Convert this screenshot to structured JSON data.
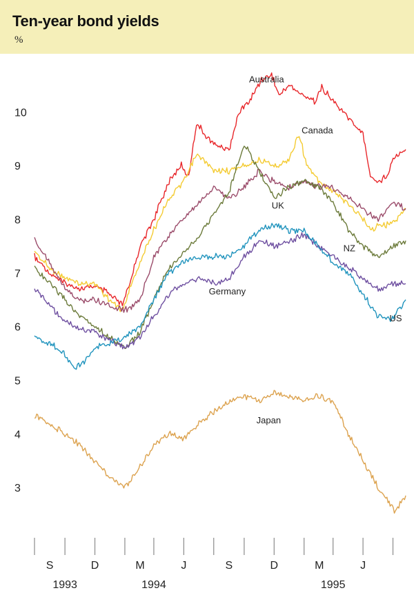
{
  "header": {
    "title": "Ten-year bond yields",
    "unit": "%"
  },
  "chart_data": {
    "type": "line",
    "title": "Ten-year bond yields",
    "ylabel": "%",
    "ylim": [
      2.0,
      10.8
    ],
    "y_ticks": [
      3,
      4,
      5,
      6,
      7,
      8,
      9,
      10
    ],
    "x_range": [
      "1993-07-15",
      "1995-08-10"
    ],
    "x_tick_dates": [
      "1993-07-15",
      "1993-09-15",
      "1993-11-15",
      "1994-01-15",
      "1994-03-15",
      "1994-05-15",
      "1994-07-15",
      "1994-09-15",
      "1994-11-15",
      "1995-01-15",
      "1995-03-15",
      "1995-05-15",
      "1995-07-15"
    ],
    "month_labels": [
      {
        "label": "S",
        "date": "1993-08-15"
      },
      {
        "label": "D",
        "date": "1993-11-15"
      },
      {
        "label": "M",
        "date": "1994-02-15"
      },
      {
        "label": "J",
        "date": "1994-05-15"
      },
      {
        "label": "S",
        "date": "1994-08-15"
      },
      {
        "label": "D",
        "date": "1994-11-15"
      },
      {
        "label": "M",
        "date": "1995-02-15"
      },
      {
        "label": "J",
        "date": "1995-05-15"
      }
    ],
    "year_labels": [
      {
        "label": "1993",
        "date": "1993-09-15"
      },
      {
        "label": "1994",
        "date": "1994-03-15"
      },
      {
        "label": "1995",
        "date": "1995-03-15"
      }
    ],
    "grid": false,
    "series": [
      {
        "name": "Australia",
        "color": "#e8262a",
        "label_at": "1994-09-25",
        "label_y": 10.55,
        "points": [
          [
            "1993-07-15",
            7.3
          ],
          [
            "1993-08-15",
            7.0
          ],
          [
            "1993-09-15",
            6.8
          ],
          [
            "1993-10-15",
            6.7
          ],
          [
            "1993-11-15",
            6.75
          ],
          [
            "1993-12-15",
            6.6
          ],
          [
            "1994-01-10",
            6.4
          ],
          [
            "1994-01-25",
            6.8
          ],
          [
            "1994-02-15",
            7.5
          ],
          [
            "1994-03-15",
            8.0
          ],
          [
            "1994-04-15",
            8.7
          ],
          [
            "1994-05-10",
            9.0
          ],
          [
            "1994-05-25",
            8.8
          ],
          [
            "1994-06-10",
            9.8
          ],
          [
            "1994-06-25",
            9.6
          ],
          [
            "1994-07-15",
            9.4
          ],
          [
            "1994-08-15",
            9.3
          ],
          [
            "1994-09-05",
            10.0
          ],
          [
            "1994-09-25",
            10.2
          ],
          [
            "1994-10-20",
            10.6
          ],
          [
            "1994-11-10",
            10.7
          ],
          [
            "1994-11-25",
            10.3
          ],
          [
            "1994-12-15",
            10.5
          ],
          [
            "1995-01-15",
            10.3
          ],
          [
            "1995-02-05",
            10.2
          ],
          [
            "1995-02-20",
            10.45
          ],
          [
            "1995-03-15",
            10.2
          ],
          [
            "1995-04-15",
            9.9
          ],
          [
            "1995-05-15",
            9.6
          ],
          [
            "1995-05-30",
            8.8
          ],
          [
            "1995-06-15",
            8.7
          ],
          [
            "1995-07-01",
            8.8
          ],
          [
            "1995-07-20",
            9.2
          ],
          [
            "1995-08-10",
            9.3
          ]
        ]
      },
      {
        "name": "Canada",
        "color": "#f4cb32",
        "label_at": "1995-01-10",
        "label_y": 9.6,
        "points": [
          [
            "1993-07-15",
            7.4
          ],
          [
            "1993-08-15",
            7.1
          ],
          [
            "1993-09-15",
            6.9
          ],
          [
            "1993-10-15",
            6.8
          ],
          [
            "1993-11-15",
            6.8
          ],
          [
            "1993-12-15",
            6.5
          ],
          [
            "1994-01-10",
            6.3
          ],
          [
            "1994-01-25",
            6.7
          ],
          [
            "1994-02-15",
            7.2
          ],
          [
            "1994-03-15",
            7.8
          ],
          [
            "1994-04-15",
            8.4
          ],
          [
            "1994-05-15",
            8.7
          ],
          [
            "1994-06-10",
            9.2
          ],
          [
            "1994-06-25",
            9.1
          ],
          [
            "1994-07-15",
            8.9
          ],
          [
            "1994-08-15",
            8.9
          ],
          [
            "1994-09-15",
            9.0
          ],
          [
            "1994-10-15",
            9.1
          ],
          [
            "1994-11-15",
            9.0
          ],
          [
            "1994-12-15",
            9.1
          ],
          [
            "1995-01-05",
            9.6
          ],
          [
            "1995-01-20",
            9.0
          ],
          [
            "1995-02-15",
            8.7
          ],
          [
            "1995-03-15",
            8.5
          ],
          [
            "1995-04-15",
            8.3
          ],
          [
            "1995-05-15",
            8.0
          ],
          [
            "1995-06-01",
            7.8
          ],
          [
            "1995-06-20",
            7.9
          ],
          [
            "1995-07-10",
            7.9
          ],
          [
            "1995-08-10",
            8.2
          ]
        ]
      },
      {
        "name": "UK",
        "color": "#9a4b6a",
        "label_at": "1994-11-10",
        "label_y": 8.2,
        "points": [
          [
            "1993-07-15",
            7.6
          ],
          [
            "1993-08-15",
            7.2
          ],
          [
            "1993-09-15",
            6.7
          ],
          [
            "1993-10-15",
            6.5
          ],
          [
            "1993-11-15",
            6.5
          ],
          [
            "1993-12-15",
            6.4
          ],
          [
            "1994-01-15",
            6.3
          ],
          [
            "1994-02-15",
            6.5
          ],
          [
            "1994-03-15",
            7.3
          ],
          [
            "1994-04-15",
            7.7
          ],
          [
            "1994-05-15",
            8.0
          ],
          [
            "1994-06-15",
            8.3
          ],
          [
            "1994-07-15",
            8.6
          ],
          [
            "1994-08-15",
            8.4
          ],
          [
            "1994-09-15",
            8.6
          ],
          [
            "1994-10-15",
            8.9
          ],
          [
            "1994-11-15",
            8.7
          ],
          [
            "1994-12-15",
            8.6
          ],
          [
            "1995-01-15",
            8.7
          ],
          [
            "1995-02-15",
            8.6
          ],
          [
            "1995-03-15",
            8.6
          ],
          [
            "1995-04-15",
            8.4
          ],
          [
            "1995-05-15",
            8.2
          ],
          [
            "1995-06-15",
            8.0
          ],
          [
            "1995-07-15",
            8.3
          ],
          [
            "1995-08-10",
            8.2
          ]
        ]
      },
      {
        "name": "NZ",
        "color": "#6b7a3a",
        "label_at": "1995-04-05",
        "label_y": 7.4,
        "points": [
          [
            "1993-07-15",
            7.1
          ],
          [
            "1993-08-15",
            6.8
          ],
          [
            "1993-09-15",
            6.5
          ],
          [
            "1993-10-15",
            6.2
          ],
          [
            "1993-11-15",
            6.0
          ],
          [
            "1993-12-15",
            5.8
          ],
          [
            "1994-01-15",
            5.6
          ],
          [
            "1994-02-15",
            5.9
          ],
          [
            "1994-03-15",
            6.5
          ],
          [
            "1994-04-15",
            7.1
          ],
          [
            "1994-05-15",
            7.4
          ],
          [
            "1994-06-15",
            7.7
          ],
          [
            "1994-07-15",
            8.1
          ],
          [
            "1994-08-15",
            8.5
          ],
          [
            "1994-09-15",
            9.4
          ],
          [
            "1994-10-15",
            8.9
          ],
          [
            "1994-11-15",
            8.4
          ],
          [
            "1994-12-15",
            8.6
          ],
          [
            "1995-01-15",
            8.7
          ],
          [
            "1995-02-15",
            8.6
          ],
          [
            "1995-03-15",
            8.3
          ],
          [
            "1995-04-15",
            7.8
          ],
          [
            "1995-05-15",
            7.5
          ],
          [
            "1995-06-15",
            7.3
          ],
          [
            "1995-07-15",
            7.5
          ],
          [
            "1995-08-10",
            7.6
          ]
        ]
      },
      {
        "name": "Germany",
        "color": "#6e4fa0",
        "label_at": "1994-07-05",
        "label_y": 6.6,
        "points": [
          [
            "1993-07-15",
            6.7
          ],
          [
            "1993-08-15",
            6.4
          ],
          [
            "1993-09-15",
            6.1
          ],
          [
            "1993-10-15",
            5.95
          ],
          [
            "1993-11-15",
            5.9
          ],
          [
            "1993-12-15",
            5.75
          ],
          [
            "1994-01-15",
            5.6
          ],
          [
            "1994-02-15",
            5.8
          ],
          [
            "1994-03-15",
            6.2
          ],
          [
            "1994-04-15",
            6.6
          ],
          [
            "1994-05-15",
            6.8
          ],
          [
            "1994-06-15",
            6.9
          ],
          [
            "1994-07-15",
            6.8
          ],
          [
            "1994-08-15",
            6.9
          ],
          [
            "1994-09-15",
            7.3
          ],
          [
            "1994-10-15",
            7.6
          ],
          [
            "1994-11-15",
            7.5
          ],
          [
            "1994-12-15",
            7.6
          ],
          [
            "1995-01-15",
            7.7
          ],
          [
            "1995-02-15",
            7.5
          ],
          [
            "1995-03-15",
            7.3
          ],
          [
            "1995-04-15",
            7.1
          ],
          [
            "1995-05-15",
            6.9
          ],
          [
            "1995-06-15",
            6.7
          ],
          [
            "1995-07-15",
            6.8
          ],
          [
            "1995-08-10",
            6.8
          ]
        ]
      },
      {
        "name": "US",
        "color": "#1f93bd",
        "label_at": "1995-07-08",
        "label_y": 6.1,
        "points": [
          [
            "1993-07-15",
            5.8
          ],
          [
            "1993-08-15",
            5.7
          ],
          [
            "1993-09-15",
            5.5
          ],
          [
            "1993-10-01",
            5.25
          ],
          [
            "1993-10-20",
            5.3
          ],
          [
            "1993-11-15",
            5.6
          ],
          [
            "1993-12-15",
            5.7
          ],
          [
            "1994-01-15",
            5.8
          ],
          [
            "1994-02-15",
            6.0
          ],
          [
            "1994-03-15",
            6.5
          ],
          [
            "1994-04-15",
            7.0
          ],
          [
            "1994-05-15",
            7.2
          ],
          [
            "1994-06-15",
            7.3
          ],
          [
            "1994-07-15",
            7.3
          ],
          [
            "1994-08-15",
            7.3
          ],
          [
            "1994-09-15",
            7.5
          ],
          [
            "1994-10-15",
            7.8
          ],
          [
            "1994-11-15",
            7.9
          ],
          [
            "1994-12-15",
            7.8
          ],
          [
            "1995-01-15",
            7.8
          ],
          [
            "1995-02-15",
            7.5
          ],
          [
            "1995-03-15",
            7.2
          ],
          [
            "1995-04-15",
            7.0
          ],
          [
            "1995-05-15",
            6.6
          ],
          [
            "1995-06-15",
            6.2
          ],
          [
            "1995-07-10",
            6.1
          ],
          [
            "1995-07-25",
            6.3
          ],
          [
            "1995-08-10",
            6.5
          ]
        ]
      },
      {
        "name": "Japan",
        "color": "#dca24e",
        "label_at": "1994-10-10",
        "label_y": 4.2,
        "points": [
          [
            "1993-07-15",
            4.35
          ],
          [
            "1993-08-15",
            4.2
          ],
          [
            "1993-09-15",
            4.0
          ],
          [
            "1993-10-15",
            3.8
          ],
          [
            "1993-11-15",
            3.5
          ],
          [
            "1993-12-15",
            3.2
          ],
          [
            "1994-01-15",
            3.0
          ],
          [
            "1994-02-15",
            3.4
          ],
          [
            "1994-03-15",
            3.8
          ],
          [
            "1994-04-15",
            4.0
          ],
          [
            "1994-05-15",
            3.9
          ],
          [
            "1994-06-15",
            4.2
          ],
          [
            "1994-07-15",
            4.4
          ],
          [
            "1994-08-15",
            4.6
          ],
          [
            "1994-09-15",
            4.7
          ],
          [
            "1994-10-15",
            4.6
          ],
          [
            "1994-11-15",
            4.75
          ],
          [
            "1994-12-15",
            4.7
          ],
          [
            "1995-01-15",
            4.65
          ],
          [
            "1995-02-15",
            4.7
          ],
          [
            "1995-03-15",
            4.6
          ],
          [
            "1995-04-15",
            4.0
          ],
          [
            "1995-05-15",
            3.5
          ],
          [
            "1995-06-15",
            3.0
          ],
          [
            "1995-07-05",
            2.75
          ],
          [
            "1995-07-20",
            2.55
          ],
          [
            "1995-08-10",
            2.85
          ]
        ]
      }
    ]
  }
}
